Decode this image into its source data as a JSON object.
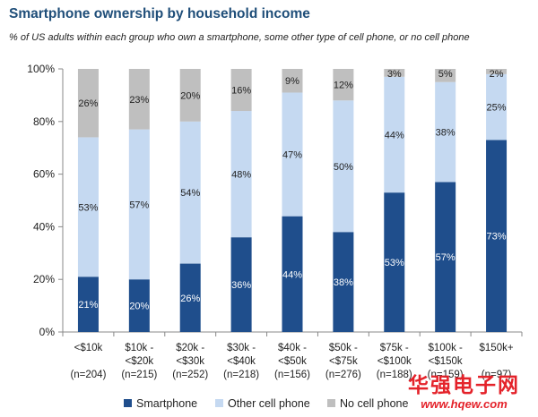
{
  "chart_data": {
    "type": "bar",
    "stacked": true,
    "title": "Smartphone ownership by household income",
    "subtitle": "% of US adults within each group who own a smartphone, some other type of cell phone, or no cell phone",
    "categories": [
      [
        "<$10k",
        "",
        "(n=204)"
      ],
      [
        "$10k -",
        "<$20k",
        "(n=215)"
      ],
      [
        "$20k -",
        "<$30k",
        "(n=252)"
      ],
      [
        "$30k -",
        "<$40k",
        "(n=218)"
      ],
      [
        "$40k -",
        "<$50k",
        "(n=156)"
      ],
      [
        "$50k -",
        "<$75k",
        "(n=276)"
      ],
      [
        "$75k -",
        "<$100k",
        "(n=188)"
      ],
      [
        "$100k -",
        "<$150k",
        "(n=159)"
      ],
      [
        "$150k+",
        "",
        "(n=97)"
      ]
    ],
    "series": [
      {
        "name": "Smartphone",
        "color": "#1f4e8c",
        "values": [
          21,
          20,
          26,
          36,
          44,
          38,
          53,
          57,
          73
        ]
      },
      {
        "name": "Other cell phone",
        "color": "#c5d9f1",
        "values": [
          53,
          57,
          54,
          48,
          47,
          50,
          44,
          38,
          25
        ]
      },
      {
        "name": "No cell phone",
        "color": "#bfbfbf",
        "values": [
          26,
          23,
          20,
          16,
          9,
          12,
          3,
          5,
          2
        ]
      }
    ],
    "data_labels": [
      [
        "21%",
        "53%",
        "26%"
      ],
      [
        "20%",
        "57%",
        "23%"
      ],
      [
        "26%",
        "54%",
        "20%"
      ],
      [
        "36%",
        "48%",
        "16%"
      ],
      [
        "44%",
        "47%",
        "9%"
      ],
      [
        "38%",
        "50%",
        "12%"
      ],
      [
        "53%",
        "44%",
        "3%"
      ],
      [
        "57%",
        "38%",
        "5%"
      ],
      [
        "73%",
        "25%",
        "2%"
      ]
    ],
    "yticks": [
      "0%",
      "20%",
      "40%",
      "60%",
      "80%",
      "100%"
    ],
    "ylim": [
      0,
      100
    ],
    "grid": false,
    "legend": "bottom"
  },
  "watermark": {
    "text": "华强电子网",
    "url": "www.hqew.com"
  }
}
